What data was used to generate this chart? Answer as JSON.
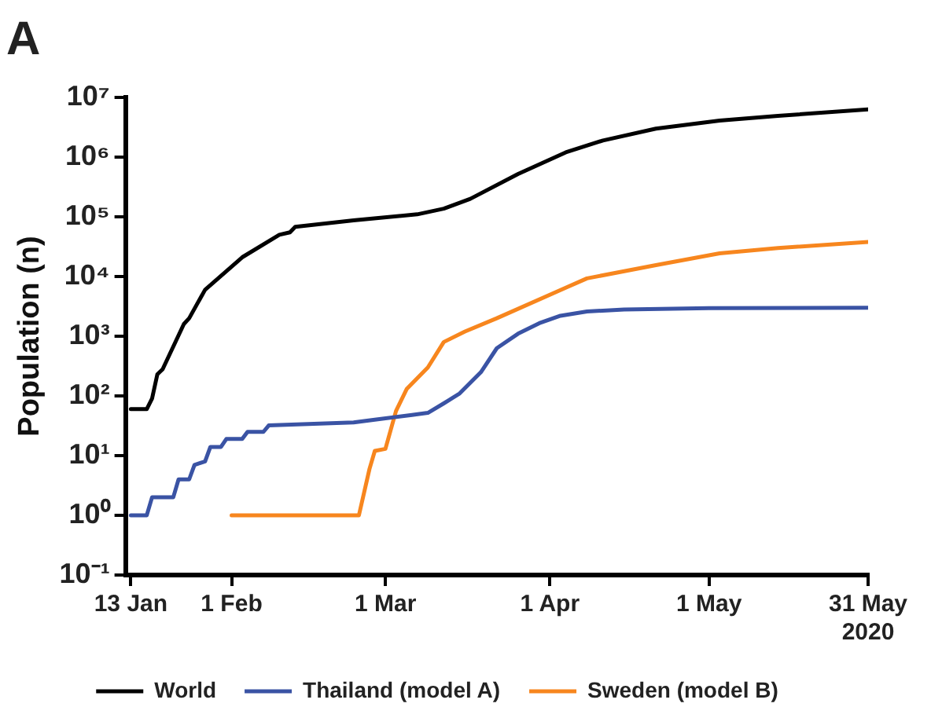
{
  "chart_data": {
    "type": "line",
    "title": "A",
    "ylabel": "Population (n)",
    "log": true,
    "grid": false,
    "legend": "bottom",
    "marker": "none",
    "line_style": "solid",
    "xlim": [
      "2020-01-12",
      "2020-05-31"
    ],
    "xticks": [
      {
        "value": "2020-01-13",
        "label": "13 Jan"
      },
      {
        "value": "2020-02-01",
        "label": "1 Feb"
      },
      {
        "value": "2020-03-01",
        "label": "1 Mar"
      },
      {
        "value": "2020-04-01",
        "label": "1 Apr"
      },
      {
        "value": "2020-05-01",
        "label": "1 May"
      },
      {
        "value": "2020-05-31",
        "label": "31 May\n2020"
      }
    ],
    "ylim": [
      0.1,
      10000000
    ],
    "yticks": [
      {
        "value": 0.1,
        "label": "10⁻¹"
      },
      {
        "value": 1,
        "label": "10⁰"
      },
      {
        "value": 10,
        "label": "10¹"
      },
      {
        "value": 100,
        "label": "10²"
      },
      {
        "value": 1000,
        "label": "10³"
      },
      {
        "value": 10000,
        "label": "10⁴"
      },
      {
        "value": 100000,
        "label": "10⁵"
      },
      {
        "value": 1000000,
        "label": "10⁶"
      },
      {
        "value": 10000000,
        "label": "10⁷"
      }
    ],
    "series": [
      {
        "name": "World",
        "color": "#000000",
        "x": [
          "2020-01-13",
          "2020-01-16",
          "2020-01-17",
          "2020-01-18",
          "2020-01-19",
          "2020-01-23",
          "2020-01-24",
          "2020-01-27",
          "2020-02-03",
          "2020-02-10",
          "2020-02-12",
          "2020-02-13",
          "2020-02-24",
          "2020-03-07",
          "2020-03-12",
          "2020-03-17",
          "2020-03-26",
          "2020-04-04",
          "2020-04-11",
          "2020-04-21",
          "2020-05-03",
          "2020-05-14",
          "2020-05-31"
        ],
        "values": [
          60,
          60,
          90,
          230,
          280,
          1600,
          2000,
          6000,
          21000,
          50000,
          55000,
          68000,
          87000,
          110000,
          137000,
          200000,
          520000,
          1200000,
          1900000,
          3000000,
          4100000,
          4900000,
          6300000
        ]
      },
      {
        "name": "Thailand (model A)",
        "color": "#3a53a4",
        "x": [
          "2020-01-13",
          "2020-01-16",
          "2020-01-17",
          "2020-01-21",
          "2020-01-22",
          "2020-01-24",
          "2020-01-25",
          "2020-01-27",
          "2020-01-28",
          "2020-01-30",
          "2020-01-31",
          "2020-02-03",
          "2020-02-04",
          "2020-02-07",
          "2020-02-08",
          "2020-02-24",
          "2020-02-28",
          "2020-03-06",
          "2020-03-09",
          "2020-03-12",
          "2020-03-15",
          "2020-03-19",
          "2020-03-22",
          "2020-03-26",
          "2020-03-30",
          "2020-04-03",
          "2020-04-08",
          "2020-04-15",
          "2020-05-01",
          "2020-05-31"
        ],
        "values": [
          1,
          1,
          2,
          2,
          4,
          4,
          7,
          8,
          14,
          14,
          19,
          19,
          25,
          25,
          32,
          36,
          40,
          48,
          52,
          75,
          110,
          250,
          630,
          1100,
          1650,
          2200,
          2600,
          2800,
          2950,
          3000
        ]
      },
      {
        "name": "Sweden (model B)",
        "color": "#f7861e",
        "x": [
          "2020-02-01",
          "2020-02-25",
          "2020-02-27",
          "2020-02-28",
          "2020-03-01",
          "2020-03-03",
          "2020-03-05",
          "2020-03-09",
          "2020-03-12",
          "2020-03-16",
          "2020-03-22",
          "2020-04-04",
          "2020-04-08",
          "2020-04-21",
          "2020-05-03",
          "2020-05-14",
          "2020-05-31"
        ],
        "values": [
          1,
          1,
          6,
          12,
          13,
          56,
          130,
          300,
          800,
          1200,
          2000,
          6500,
          9300,
          15500,
          24500,
          30000,
          38000
        ]
      }
    ]
  }
}
